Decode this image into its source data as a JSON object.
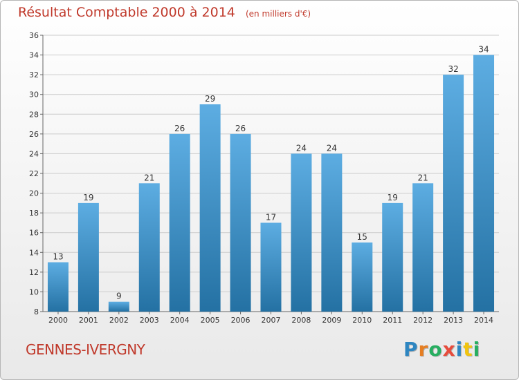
{
  "title": "Résultat Comptable 2000 à 2014",
  "subtitle": "(en milliers d'€)",
  "commune": "GENNES-IVERGNY",
  "logo": {
    "text": "Proxiti",
    "letters": [
      {
        "char": "P",
        "color": "#2e86c1"
      },
      {
        "char": "r",
        "color": "#e67e22"
      },
      {
        "char": "o",
        "color": "#27ae60"
      },
      {
        "char": "x",
        "color": "#e74c3c"
      },
      {
        "char": "i",
        "color": "#2e86c1"
      },
      {
        "char": "t",
        "color": "#f1c40f"
      },
      {
        "char": "i",
        "color": "#27ae60"
      }
    ]
  },
  "colors": {
    "title": "#c0392b",
    "bar_top": "#5dade2",
    "bar_bottom": "#2471a3",
    "grid": "#cccccc"
  },
  "chart_data": {
    "type": "bar",
    "categories": [
      "2000",
      "2001",
      "2002",
      "2003",
      "2004",
      "2005",
      "2006",
      "2007",
      "2008",
      "2009",
      "2010",
      "2011",
      "2012",
      "2013",
      "2014"
    ],
    "values": [
      13,
      19,
      9,
      21,
      26,
      29,
      26,
      17,
      24,
      24,
      15,
      19,
      21,
      32,
      34
    ],
    "ylim": [
      8,
      36
    ],
    "yticks": [
      8,
      10,
      12,
      14,
      16,
      18,
      20,
      22,
      24,
      26,
      28,
      30,
      32,
      34,
      36
    ],
    "grid": true,
    "xlabel": "",
    "ylabel": ""
  }
}
